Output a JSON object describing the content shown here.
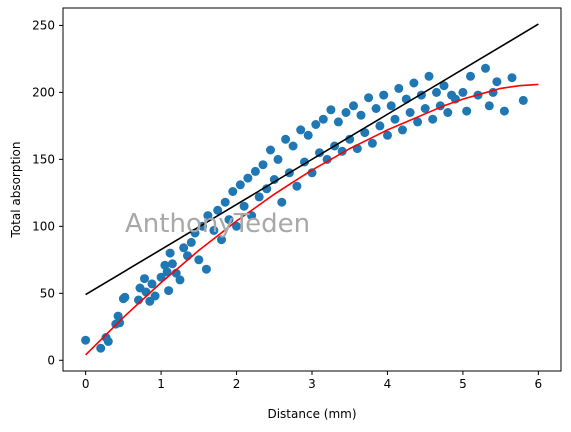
{
  "chart_data": {
    "type": "scatter",
    "title": "",
    "xlabel": "Distance (mm)",
    "ylabel": "Total absorption",
    "xlim": [
      -0.3,
      6.3
    ],
    "ylim": [
      -8,
      263
    ],
    "xticks": [
      0,
      1,
      2,
      3,
      4,
      5,
      6
    ],
    "yticks": [
      0,
      50,
      100,
      150,
      200,
      250
    ],
    "grid": false,
    "legend": "none",
    "watermark": "AnthonyTeden",
    "colors": {
      "points": "#1f77b4",
      "linear_fit": "#000000",
      "curve_fit": "#ff0000",
      "watermark": "#a8a8a8"
    },
    "scatter_points": [
      [
        0.0,
        15
      ],
      [
        0.2,
        9
      ],
      [
        0.27,
        17
      ],
      [
        0.3,
        14
      ],
      [
        0.4,
        27
      ],
      [
        0.45,
        28
      ],
      [
        0.43,
        33
      ],
      [
        0.5,
        46
      ],
      [
        0.52,
        47
      ],
      [
        0.7,
        45
      ],
      [
        0.72,
        54
      ],
      [
        0.78,
        61
      ],
      [
        0.8,
        51
      ],
      [
        0.85,
        44
      ],
      [
        0.88,
        57
      ],
      [
        0.92,
        48
      ],
      [
        1.0,
        62
      ],
      [
        1.05,
        71
      ],
      [
        1.08,
        66
      ],
      [
        1.1,
        52
      ],
      [
        1.12,
        80
      ],
      [
        1.15,
        72
      ],
      [
        1.2,
        65
      ],
      [
        1.25,
        60
      ],
      [
        1.3,
        84
      ],
      [
        1.35,
        78
      ],
      [
        1.4,
        88
      ],
      [
        1.45,
        95
      ],
      [
        1.5,
        75
      ],
      [
        1.55,
        100
      ],
      [
        1.6,
        68
      ],
      [
        1.62,
        108
      ],
      [
        1.7,
        97
      ],
      [
        1.75,
        112
      ],
      [
        1.8,
        90
      ],
      [
        1.85,
        118
      ],
      [
        1.9,
        105
      ],
      [
        1.95,
        126
      ],
      [
        2.0,
        100
      ],
      [
        2.05,
        131
      ],
      [
        2.1,
        115
      ],
      [
        2.15,
        136
      ],
      [
        2.2,
        108
      ],
      [
        2.25,
        141
      ],
      [
        2.3,
        122
      ],
      [
        2.35,
        146
      ],
      [
        2.4,
        128
      ],
      [
        2.45,
        157
      ],
      [
        2.5,
        135
      ],
      [
        2.55,
        150
      ],
      [
        2.6,
        118
      ],
      [
        2.65,
        165
      ],
      [
        2.7,
        140
      ],
      [
        2.75,
        160
      ],
      [
        2.8,
        130
      ],
      [
        2.85,
        172
      ],
      [
        2.9,
        148
      ],
      [
        2.95,
        168
      ],
      [
        3.0,
        140
      ],
      [
        3.05,
        176
      ],
      [
        3.1,
        155
      ],
      [
        3.15,
        180
      ],
      [
        3.2,
        150
      ],
      [
        3.25,
        187
      ],
      [
        3.3,
        160
      ],
      [
        3.35,
        178
      ],
      [
        3.4,
        156
      ],
      [
        3.45,
        185
      ],
      [
        3.5,
        165
      ],
      [
        3.55,
        190
      ],
      [
        3.6,
        158
      ],
      [
        3.65,
        183
      ],
      [
        3.7,
        170
      ],
      [
        3.75,
        196
      ],
      [
        3.8,
        162
      ],
      [
        3.85,
        188
      ],
      [
        3.9,
        175
      ],
      [
        3.95,
        198
      ],
      [
        4.0,
        168
      ],
      [
        4.05,
        190
      ],
      [
        4.1,
        180
      ],
      [
        4.15,
        203
      ],
      [
        4.2,
        172
      ],
      [
        4.25,
        195
      ],
      [
        4.3,
        185
      ],
      [
        4.35,
        207
      ],
      [
        4.4,
        178
      ],
      [
        4.45,
        198
      ],
      [
        4.5,
        188
      ],
      [
        4.55,
        212
      ],
      [
        4.6,
        180
      ],
      [
        4.65,
        200
      ],
      [
        4.7,
        190
      ],
      [
        4.75,
        205
      ],
      [
        4.8,
        185
      ],
      [
        4.85,
        198
      ],
      [
        4.9,
        195
      ],
      [
        5.0,
        200
      ],
      [
        5.05,
        186
      ],
      [
        5.1,
        212
      ],
      [
        5.2,
        198
      ],
      [
        5.3,
        218
      ],
      [
        5.35,
        190
      ],
      [
        5.4,
        200
      ],
      [
        5.45,
        208
      ],
      [
        5.55,
        186
      ],
      [
        5.65,
        211
      ],
      [
        5.8,
        194
      ]
    ],
    "linear_fit": {
      "x": [
        0.0,
        6.0
      ],
      "y": [
        49,
        251
      ]
    },
    "curve_fit": {
      "x": [
        0.0,
        0.25,
        0.5,
        0.75,
        1.0,
        1.25,
        1.5,
        1.75,
        2.0,
        2.25,
        2.5,
        2.75,
        3.0,
        3.25,
        3.5,
        3.75,
        4.0,
        4.25,
        4.5,
        4.75,
        5.0,
        5.25,
        5.5,
        5.75,
        6.0
      ],
      "y": [
        4,
        18,
        32,
        45,
        58,
        70,
        82,
        93,
        104,
        114,
        124,
        133,
        142,
        150,
        158,
        165,
        172,
        178,
        184,
        190,
        195,
        199,
        203,
        205,
        206
      ]
    }
  }
}
